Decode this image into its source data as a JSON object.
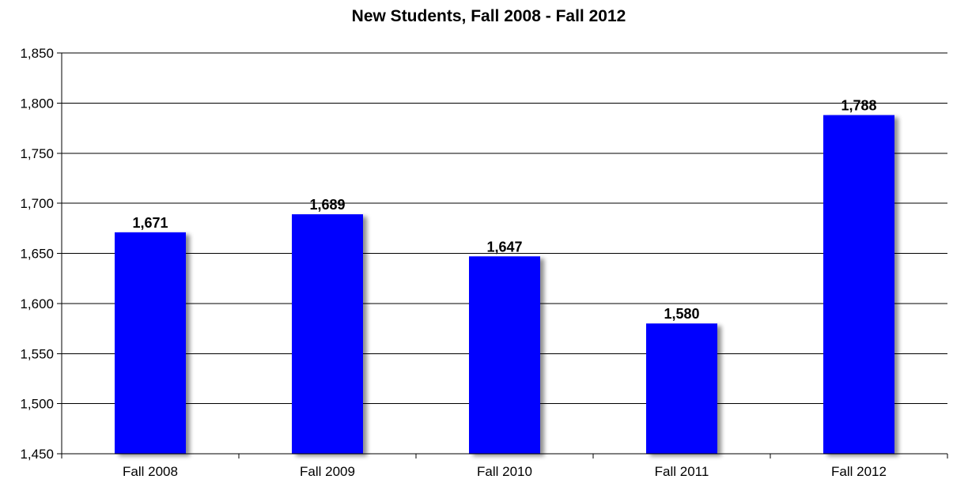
{
  "chart_data": {
    "type": "bar",
    "title": "New Students, Fall 2008 - Fall 2012",
    "xlabel": "",
    "ylabel": "",
    "categories": [
      "Fall 2008",
      "Fall 2009",
      "Fall 2010",
      "Fall 2011",
      "Fall 2012"
    ],
    "values": [
      1671,
      1689,
      1647,
      1580,
      1788
    ],
    "data_labels": [
      "1,671",
      "1,689",
      "1,647",
      "1,580",
      "1,788"
    ],
    "ylim": [
      1450,
      1850
    ],
    "yticks": [
      1450,
      1500,
      1550,
      1600,
      1650,
      1700,
      1750,
      1800,
      1850
    ],
    "ytick_labels": [
      "1,450",
      "1,500",
      "1,550",
      "1,600",
      "1,650",
      "1,700",
      "1,750",
      "1,800",
      "1,850"
    ],
    "grid": true,
    "legend": "none",
    "bar_color": "#0000FF"
  }
}
